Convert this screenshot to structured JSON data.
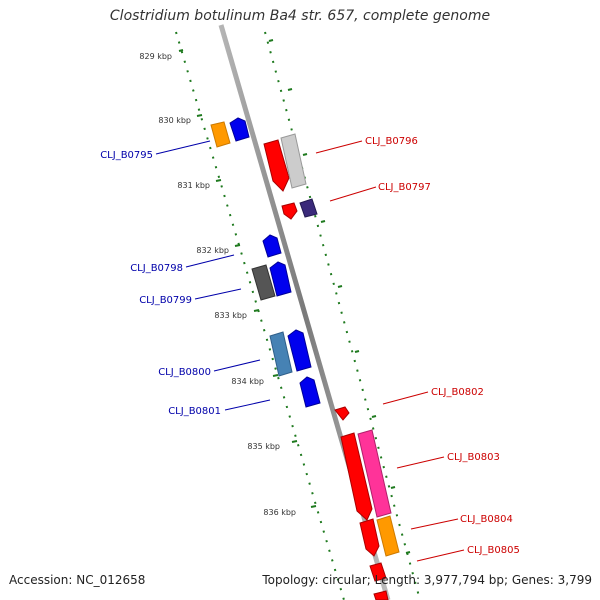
{
  "title": "Clostridium botulinum Ba4 str. 657, complete genome",
  "footer": {
    "accession": "Accession: NC_012658",
    "stats": "Topology: circular; Length: 3,977,794 bp; Genes: 3,799"
  },
  "ticks": [
    "829 kbp",
    "830 kbp",
    "831 kbp",
    "832 kbp",
    "833 kbp",
    "834 kbp",
    "835 kbp",
    "836 kbp"
  ],
  "genes": [
    {
      "label": "CLJ_B0795",
      "strand": "reverse",
      "color": "#0000cc"
    },
    {
      "label": "CLJ_B0796",
      "strand": "forward",
      "color": "#cc0000"
    },
    {
      "label": "CLJ_B0797",
      "strand": "forward",
      "color": "#cc0000"
    },
    {
      "label": "CLJ_B0798",
      "strand": "reverse",
      "color": "#0000cc"
    },
    {
      "label": "CLJ_B0799",
      "strand": "reverse",
      "color": "#0000cc"
    },
    {
      "label": "CLJ_B0800",
      "strand": "reverse",
      "color": "#0000cc"
    },
    {
      "label": "CLJ_B0801",
      "strand": "reverse",
      "color": "#0000cc"
    },
    {
      "label": "CLJ_B0802",
      "strand": "forward",
      "color": "#cc0000"
    },
    {
      "label": "CLJ_B0803",
      "strand": "forward",
      "color": "#cc0000"
    },
    {
      "label": "CLJ_B0804",
      "strand": "forward",
      "color": "#cc0000"
    },
    {
      "label": "CLJ_B0805",
      "strand": "forward",
      "color": "#cc0000"
    }
  ],
  "colors": {
    "backbone": "#8a8a8a",
    "tick_marks": "#228b22",
    "forward_gene": "#ff0000",
    "reverse_gene": "#0000ff"
  }
}
